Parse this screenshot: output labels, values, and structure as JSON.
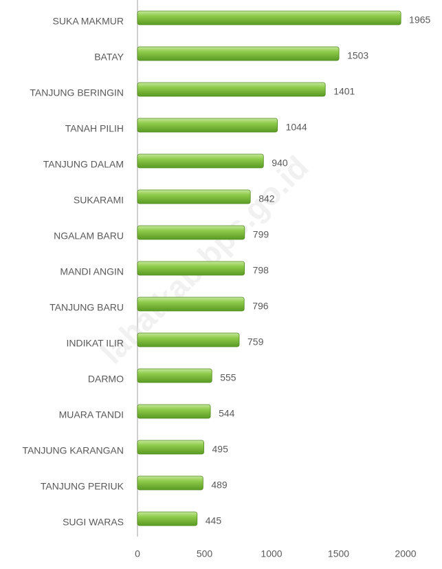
{
  "chart_data": {
    "type": "hbar",
    "categories": [
      "SUKA MAKMUR",
      "BATAY",
      "TANJUNG BERINGIN",
      "TANAH PILIH",
      "TANJUNG DALAM",
      "SUKARAMI",
      "NGALAM BARU",
      "MANDI ANGIN",
      "TANJUNG BARU",
      "INDIKAT ILIR",
      "DARMO",
      "MUARA TANDI",
      "TANJUNG KARANGAN",
      "TANJUNG PERIUK",
      "SUGI WARAS"
    ],
    "values": [
      1965,
      1503,
      1401,
      1044,
      940,
      842,
      799,
      798,
      796,
      759,
      555,
      544,
      495,
      489,
      445
    ],
    "color": "#82c341",
    "xlim": [
      0,
      2000
    ],
    "xticks": [
      0,
      500,
      1000,
      1500,
      2000
    ],
    "watermark": "lahatkab.bps.go.id"
  }
}
